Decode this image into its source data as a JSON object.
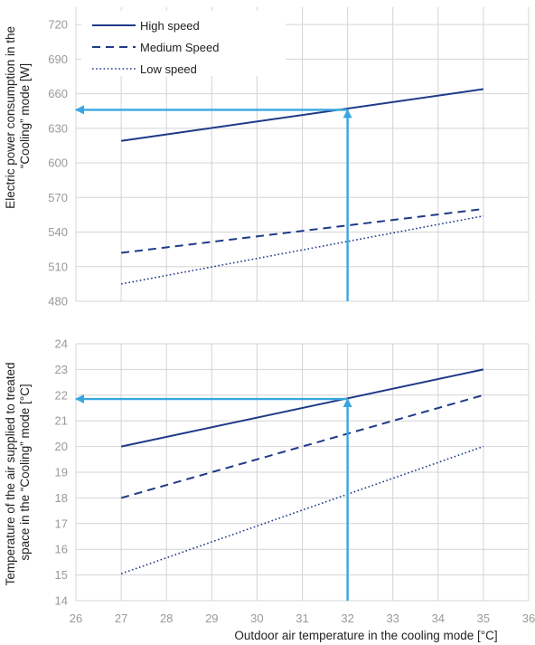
{
  "colors": {
    "series": "#1f3a87",
    "arrow": "#3aa6e0",
    "grid": "#d4d4d4",
    "tick_text": "#999999",
    "axis_text": "#222222"
  },
  "chart_data": [
    {
      "type": "line",
      "ylabel_lines": [
        "Electric power consumption in the",
        "“Cooling” mode [W]"
      ],
      "x_range": [
        26,
        36
      ],
      "ylim": [
        480,
        735
      ],
      "y_ticks": [
        480,
        510,
        540,
        570,
        600,
        630,
        660,
        690,
        720
      ],
      "grid": true,
      "legend": "top-left",
      "series": [
        {
          "name": "High speed",
          "style": "solid",
          "x": [
            27,
            35
          ],
          "y": [
            619,
            664
          ]
        },
        {
          "name": "Medium Speed",
          "style": "dashed",
          "x": [
            27,
            35
          ],
          "y": [
            522,
            560
          ]
        },
        {
          "name": "Low speed",
          "style": "dotted",
          "x": [
            27,
            35
          ],
          "y": [
            495,
            554
          ]
        }
      ],
      "annotations": [
        {
          "type": "arrow",
          "from": [
            32,
            480
          ],
          "to": [
            32,
            646
          ]
        },
        {
          "type": "arrow",
          "from": [
            32,
            646
          ],
          "to": [
            26,
            646
          ]
        }
      ]
    },
    {
      "type": "line",
      "ylabel_lines": [
        "Temperature of the air supplied to treated",
        "space in the “Cooling” mode [°C]"
      ],
      "xlabel": "Outdoor air temperature in the cooling mode [°C]",
      "x_range": [
        26,
        36
      ],
      "x_ticks": [
        26,
        27,
        28,
        29,
        30,
        31,
        32,
        33,
        34,
        35,
        36
      ],
      "ylim": [
        14,
        24
      ],
      "y_ticks": [
        14,
        15,
        16,
        17,
        18,
        19,
        20,
        21,
        22,
        23,
        24
      ],
      "grid": true,
      "series": [
        {
          "name": "High speed",
          "style": "solid",
          "x": [
            27,
            35
          ],
          "y": [
            20,
            23
          ]
        },
        {
          "name": "Medium Speed",
          "style": "dashed",
          "x": [
            27,
            35
          ],
          "y": [
            18,
            22
          ]
        },
        {
          "name": "Low speed",
          "style": "dotted",
          "x": [
            27,
            35
          ],
          "y": [
            15.05,
            20
          ]
        }
      ],
      "annotations": [
        {
          "type": "arrow",
          "from": [
            32,
            14
          ],
          "to": [
            32,
            21.85
          ]
        },
        {
          "type": "arrow",
          "from": [
            32,
            21.85
          ],
          "to": [
            26,
            21.85
          ]
        }
      ]
    }
  ]
}
